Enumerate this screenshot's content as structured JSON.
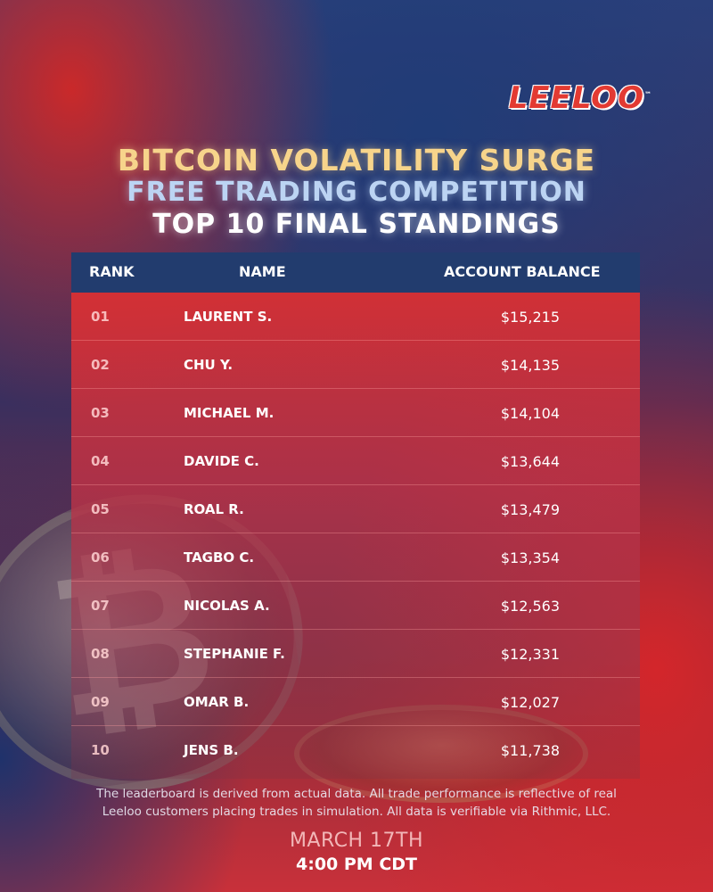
{
  "brand": {
    "logo_text": "LEELOO",
    "trademark": "™"
  },
  "headline": {
    "line1": "BITCOIN VOLATILITY SURGE",
    "line2": "FREE TRADING COMPETITION",
    "line3": "TOP 10 FINAL STANDINGS"
  },
  "table": {
    "headers": {
      "rank": "RANK",
      "name": "NAME",
      "balance": "ACCOUNT BALANCE"
    },
    "rows": [
      {
        "rank": "01",
        "name": "LAURENT S.",
        "balance": "$15,215"
      },
      {
        "rank": "02",
        "name": "CHU Y.",
        "balance": "$14,135"
      },
      {
        "rank": "03",
        "name": "MICHAEL M.",
        "balance": "$14,104"
      },
      {
        "rank": "04",
        "name": "DAVIDE C.",
        "balance": "$13,644"
      },
      {
        "rank": "05",
        "name": "ROAL R.",
        "balance": "$13,479"
      },
      {
        "rank": "06",
        "name": "TAGBO C.",
        "balance": "$13,354"
      },
      {
        "rank": "07",
        "name": "NICOLAS A.",
        "balance": "$12,563"
      },
      {
        "rank": "08",
        "name": "STEPHANIE F.",
        "balance": "$12,331"
      },
      {
        "rank": "09",
        "name": "OMAR B.",
        "balance": "$12,027"
      },
      {
        "rank": "10",
        "name": "JENS B.",
        "balance": "$11,738"
      }
    ]
  },
  "disclaimer": {
    "line1": "The leaderboard is derived from actual data. All trade performance is reflective of real",
    "line2": "Leeloo customers placing trades in simulation. All data is verifiable via Rithmic, LLC."
  },
  "event": {
    "date": "MARCH 17TH",
    "time": "4:00 PM CDT"
  },
  "colors": {
    "brand_red": "#e33a32",
    "header_navy": "#223c6e",
    "title_gold": "#f7d48b",
    "title_blue": "#bcd4f3"
  },
  "icons": [
    "bitcoin-coin-icon"
  ]
}
